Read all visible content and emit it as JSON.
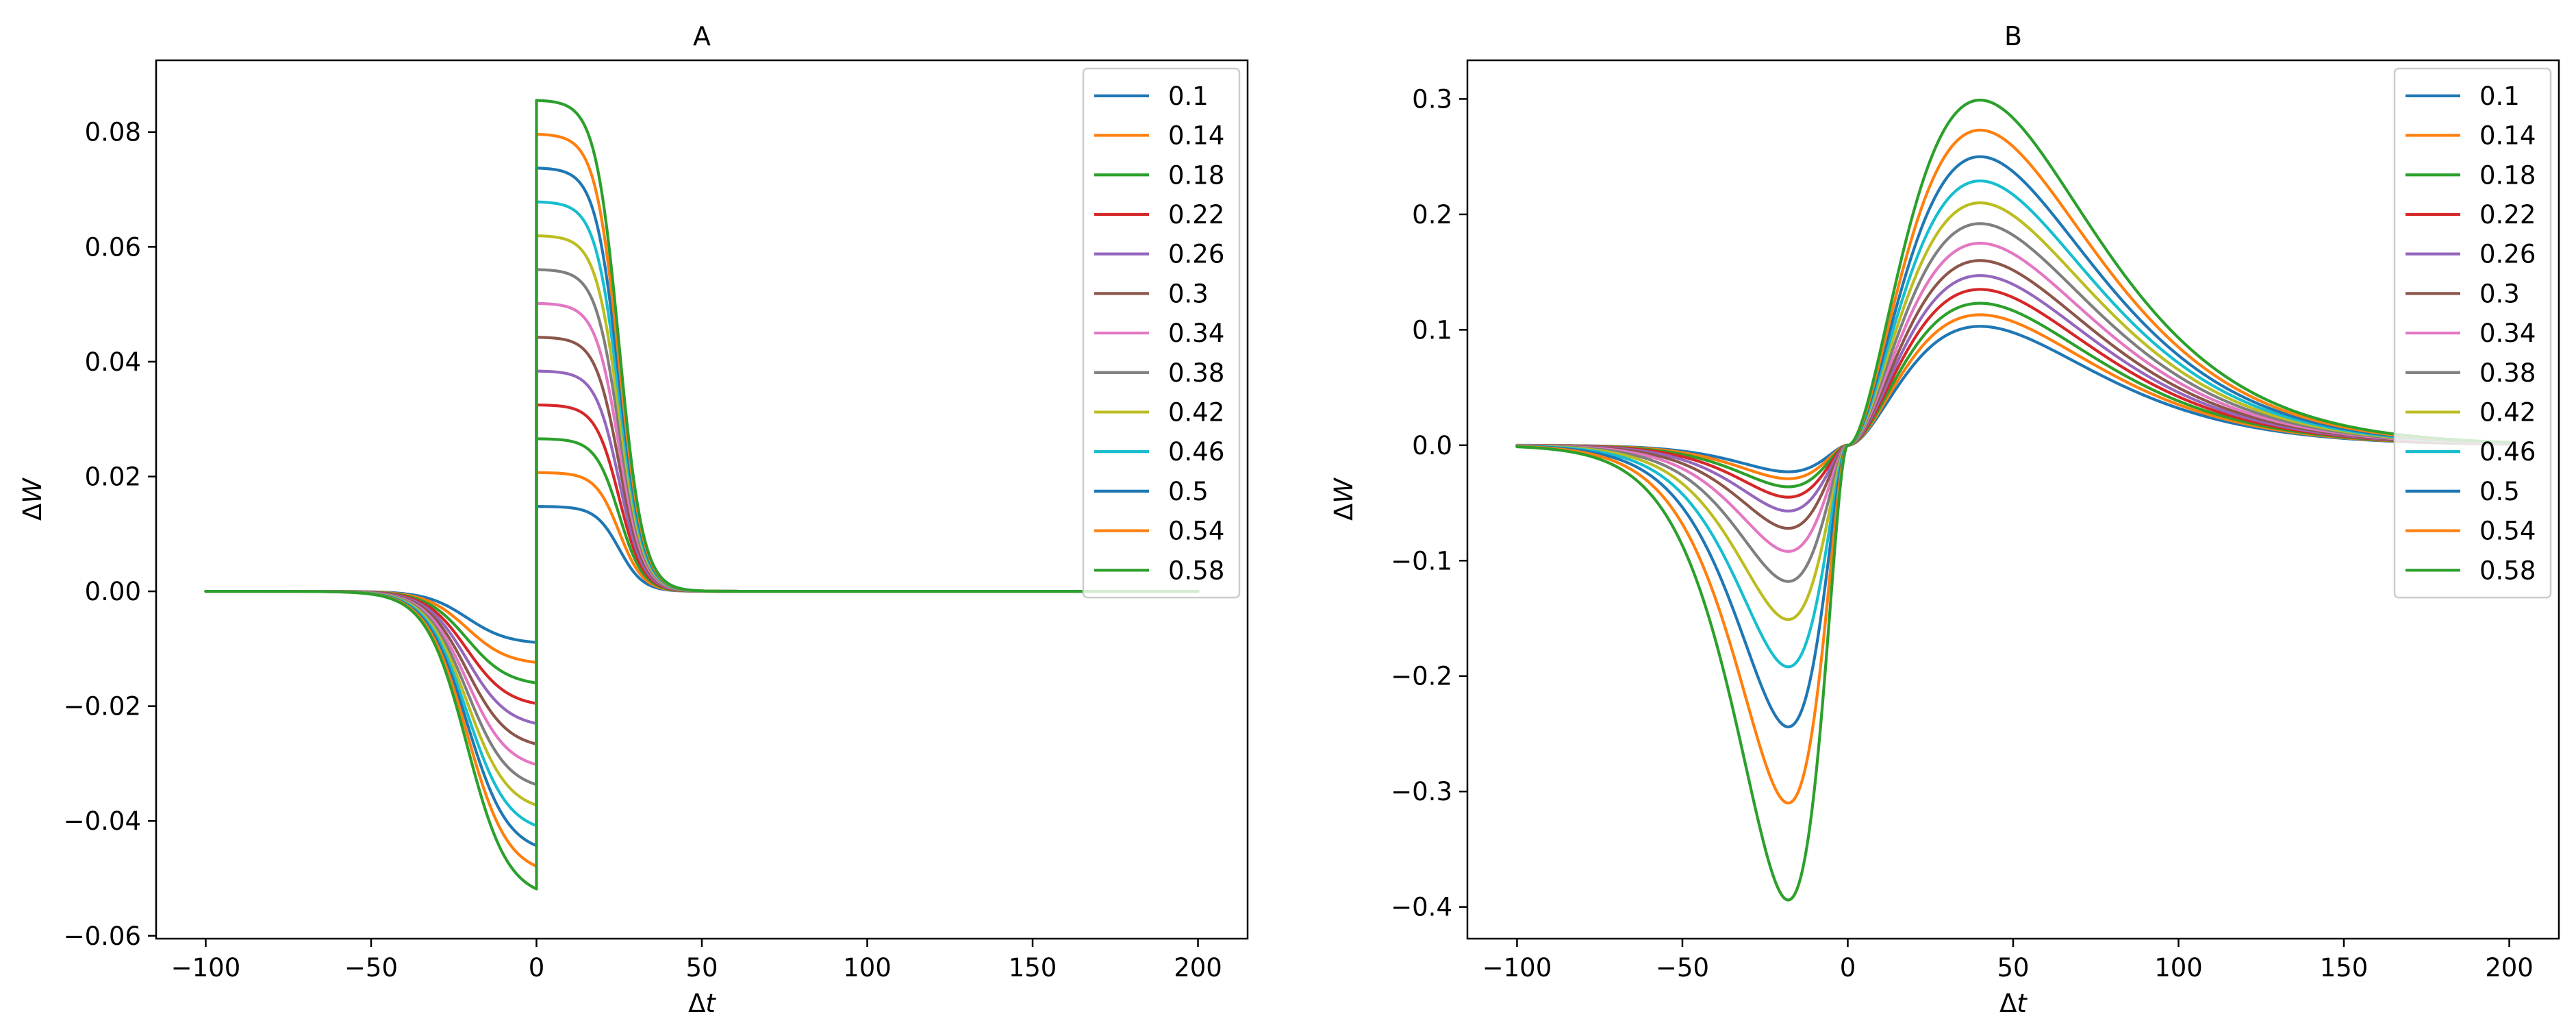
{
  "chart_data": [
    {
      "type": "line",
      "title": "A",
      "xlabel_prefix": "Δ",
      "xlabel_var": "t",
      "ylabel_prefix": "Δ",
      "ylabel_var": "W",
      "xlim": [
        -115,
        215
      ],
      "ylim": [
        -0.0605,
        0.0925
      ],
      "x_ticks": [
        -100,
        -50,
        0,
        50,
        100,
        150,
        200
      ],
      "x_tick_labels": [
        "−100",
        "−50",
        "0",
        "50",
        "100",
        "150",
        "200"
      ],
      "y_ticks": [
        -0.06,
        -0.04,
        -0.02,
        0.0,
        0.02,
        0.04,
        0.06,
        0.08
      ],
      "y_tick_labels": [
        "−0.06",
        "−0.04",
        "−0.02",
        "0.00",
        "0.02",
        "0.04",
        "0.06",
        "0.08"
      ],
      "grid": false,
      "legend_position": "top-right",
      "x_range": [
        -100,
        200
      ],
      "curve_shape": {
        "model": "step_sigmoid",
        "negative_side": {
          "center": -21,
          "width": 6.2
        },
        "positive_side": {
          "center": 25,
          "width": 3.6
        }
      },
      "series": [
        {
          "name": "0.1",
          "color": "#1f77b4",
          "peak": 0.0148,
          "trough": -0.0092
        },
        {
          "name": "0.14",
          "color": "#ff7f0e",
          "peak": 0.0207,
          "trough": -0.0128
        },
        {
          "name": "0.18",
          "color": "#2ca02c",
          "peak": 0.0266,
          "trough": -0.0165
        },
        {
          "name": "0.22",
          "color": "#d62728",
          "peak": 0.0325,
          "trough": -0.0202
        },
        {
          "name": "0.26",
          "color": "#9467bd",
          "peak": 0.0384,
          "trough": -0.0238
        },
        {
          "name": "0.3",
          "color": "#8c564b",
          "peak": 0.0443,
          "trough": -0.0275
        },
        {
          "name": "0.34",
          "color": "#e377c2",
          "peak": 0.0502,
          "trough": -0.0312
        },
        {
          "name": "0.38",
          "color": "#7f7f7f",
          "peak": 0.0561,
          "trough": -0.0348
        },
        {
          "name": "0.42",
          "color": "#bcbd22",
          "peak": 0.062,
          "trough": -0.0385
        },
        {
          "name": "0.46",
          "color": "#17becf",
          "peak": 0.0679,
          "trough": -0.0422
        },
        {
          "name": "0.5",
          "color": "#1f77b4",
          "peak": 0.0738,
          "trough": -0.0458
        },
        {
          "name": "0.54",
          "color": "#ff7f0e",
          "peak": 0.0797,
          "trough": -0.0495
        },
        {
          "name": "0.58",
          "color": "#2ca02c",
          "peak": 0.0856,
          "trough": -0.0536
        }
      ]
    },
    {
      "type": "line",
      "title": "B",
      "xlabel_prefix": "Δ",
      "xlabel_var": "t",
      "ylabel_prefix": "Δ",
      "ylabel_var": "W",
      "xlim": [
        -115,
        215
      ],
      "ylim": [
        -0.4275,
        0.3335
      ],
      "x_ticks": [
        -100,
        -50,
        0,
        50,
        100,
        150,
        200
      ],
      "x_tick_labels": [
        "−100",
        "−50",
        "0",
        "50",
        "100",
        "150",
        "200"
      ],
      "y_ticks": [
        -0.4,
        -0.3,
        -0.2,
        -0.1,
        0.0,
        0.1,
        0.2,
        0.3
      ],
      "y_tick_labels": [
        "−0.4",
        "−0.3",
        "−0.2",
        "−0.1",
        "0.0",
        "0.1",
        "0.2",
        "0.3"
      ],
      "grid": false,
      "legend_position": "top-right",
      "x_range": [
        -100,
        200
      ],
      "curve_shape": {
        "model": "smooth_bipolar",
        "positive_lobe_peak_x": 40,
        "negative_lobe_peak_x": -18
      },
      "series": [
        {
          "name": "0.1",
          "color": "#1f77b4",
          "peak": 0.103,
          "trough": -0.023
        },
        {
          "name": "0.14",
          "color": "#ff7f0e",
          "peak": 0.113,
          "trough": -0.029
        },
        {
          "name": "0.18",
          "color": "#2ca02c",
          "peak": 0.123,
          "trough": -0.036
        },
        {
          "name": "0.22",
          "color": "#d62728",
          "peak": 0.135,
          "trough": -0.045
        },
        {
          "name": "0.26",
          "color": "#9467bd",
          "peak": 0.147,
          "trough": -0.057
        },
        {
          "name": "0.3",
          "color": "#8c564b",
          "peak": 0.16,
          "trough": -0.072
        },
        {
          "name": "0.34",
          "color": "#e377c2",
          "peak": 0.175,
          "trough": -0.092
        },
        {
          "name": "0.38",
          "color": "#7f7f7f",
          "peak": 0.192,
          "trough": -0.118
        },
        {
          "name": "0.42",
          "color": "#bcbd22",
          "peak": 0.21,
          "trough": -0.151
        },
        {
          "name": "0.46",
          "color": "#17becf",
          "peak": 0.229,
          "trough": -0.192
        },
        {
          "name": "0.5",
          "color": "#1f77b4",
          "peak": 0.25,
          "trough": -0.244
        },
        {
          "name": "0.54",
          "color": "#ff7f0e",
          "peak": 0.273,
          "trough": -0.31
        },
        {
          "name": "0.58",
          "color": "#2ca02c",
          "peak": 0.299,
          "trough": -0.394
        }
      ]
    }
  ]
}
